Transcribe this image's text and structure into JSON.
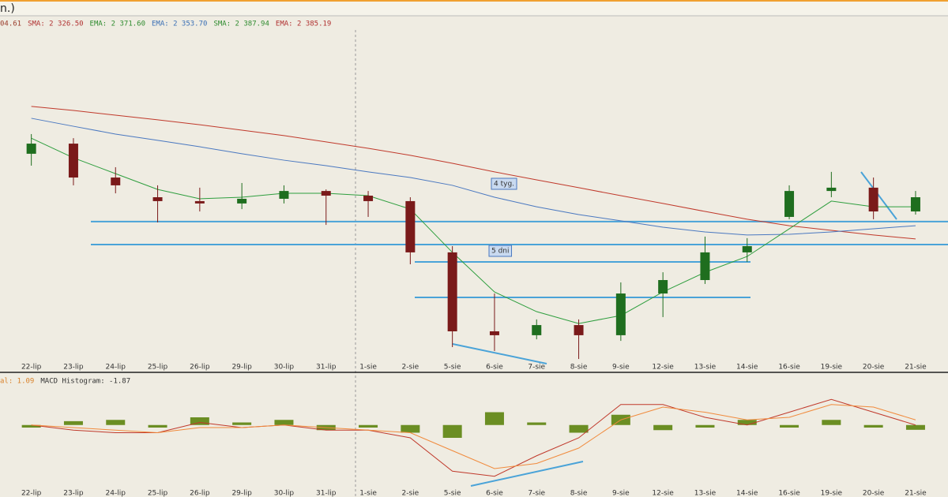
{
  "title": "n.)",
  "chart_data": [
    {
      "type": "candlestick",
      "legend": [
        {
          "label": "04.61",
          "color": "#9a3b2a"
        },
        {
          "label": "SMA: 2 326.50",
          "color": "#b03030"
        },
        {
          "label": "EMA: 2 371.60",
          "color": "#2e8b2e"
        },
        {
          "label": "EMA: 2 353.70",
          "color": "#3a6fb5"
        },
        {
          "label": "SMA: 2 387.94",
          "color": "#2e8b2e"
        },
        {
          "label": "EMA: 2 385.19",
          "color": "#b03030"
        }
      ],
      "categories": [
        "22-lip",
        "23-lip",
        "24-lip",
        "25-lip",
        "26-lip",
        "29-lip",
        "30-lip",
        "31-lip",
        "1-sie",
        "2-sie",
        "5-sie",
        "6-sie",
        "7-sie",
        "8-sie",
        "9-sie",
        "12-sie",
        "13-sie",
        "14-sie",
        "16-sie",
        "19-sie",
        "20-sie",
        "21-sie"
      ],
      "open": [
        2357.3,
        2362.5,
        2345.1,
        2335.0,
        2333.0,
        2331.8,
        2334.2,
        2338.2,
        2335.8,
        2333.0,
        2306.7,
        2266.2,
        2264.2,
        2269.4,
        2264.2,
        2285.6,
        2292.5,
        2306.7,
        2324.9,
        2338.2,
        2339.9,
        2327.7
      ],
      "high": [
        2367.4,
        2365.3,
        2350.4,
        2341.1,
        2339.9,
        2342.3,
        2341.1,
        2339.0,
        2338.2,
        2335.0,
        2309.9,
        2285.6,
        2272.3,
        2272.3,
        2291.3,
        2296.5,
        2314.8,
        2314.0,
        2341.1,
        2348.0,
        2345.1,
        2338.2
      ],
      "low": [
        2351.2,
        2341.1,
        2337.0,
        2322.1,
        2327.7,
        2328.9,
        2331.8,
        2320.8,
        2324.9,
        2300.6,
        2258.1,
        2256.1,
        2262.1,
        2252.0,
        2261.3,
        2273.5,
        2290.5,
        2301.8,
        2323.7,
        2335.0,
        2323.7,
        2326.1
      ],
      "close": [
        2362.5,
        2345.1,
        2341.1,
        2333.0,
        2331.8,
        2334.2,
        2338.2,
        2335.8,
        2333.0,
        2306.7,
        2266.2,
        2264.2,
        2269.4,
        2264.2,
        2285.6,
        2292.5,
        2306.7,
        2309.9,
        2338.2,
        2339.9,
        2327.7,
        2335.0
      ],
      "up_color": "#1f6e1f",
      "down_color": "#7a1a1a",
      "series": [
        {
          "color": "#c0392b",
          "values": [
            2381.6,
            2379.5,
            2377.1,
            2374.7,
            2372.2,
            2369.4,
            2366.6,
            2363.4,
            2360.1,
            2356.5,
            2352.4,
            2348.0,
            2343.9,
            2339.9,
            2335.8,
            2331.8,
            2327.7,
            2323.7,
            2320.4,
            2318.0,
            2315.6,
            2313.6
          ]
        },
        {
          "color": "#4a78c0",
          "values": [
            2375.5,
            2371.4,
            2367.4,
            2364.2,
            2360.9,
            2357.3,
            2354.0,
            2351.2,
            2348.0,
            2345.1,
            2341.1,
            2335.0,
            2330.1,
            2326.1,
            2322.9,
            2319.6,
            2317.2,
            2315.6,
            2316.0,
            2317.2,
            2318.8,
            2320.4
          ]
        },
        {
          "color": "#2e9e3e",
          "values": [
            2365.3,
            2355.2,
            2347.1,
            2339.0,
            2334.2,
            2335.0,
            2337.0,
            2337.0,
            2335.8,
            2328.9,
            2306.7,
            2286.4,
            2276.3,
            2270.2,
            2274.3,
            2286.4,
            2296.5,
            2304.6,
            2318.8,
            2333.0,
            2330.1,
            2330.1
          ]
        }
      ],
      "levels": [
        2322.5,
        2310.7,
        2301.8,
        2283.6
      ],
      "level_color": "#4aa3d8",
      "annotations": [
        "4 tyg.",
        "5 dni"
      ],
      "ylim": [
        2250,
        2420
      ]
    },
    {
      "type": "macd",
      "legend": [
        {
          "label": "al: 1.09",
          "color": "#d9822b"
        },
        {
          "label": "MACD Histogram: -1.87",
          "color": "#333333"
        }
      ],
      "categories": [
        "22-lip",
        "23-lip",
        "24-lip",
        "25-lip",
        "26-lip",
        "29-lip",
        "30-lip",
        "31-lip",
        "1-sie",
        "2-sie",
        "5-sie",
        "6-sie",
        "7-sie",
        "8-sie",
        "9-sie",
        "12-sie",
        "13-sie",
        "14-sie",
        "16-sie",
        "19-sie",
        "20-sie",
        "21-sie"
      ],
      "histogram": [
        -1,
        1.5,
        2,
        -1,
        3,
        1,
        2,
        -2,
        -1,
        -3,
        -5,
        5,
        1,
        -3,
        4,
        -2,
        -1,
        2,
        -1,
        2,
        -1,
        -1.87
      ],
      "histogram_color": "#6b8e23",
      "series": [
        {
          "color": "#c0392b",
          "values": [
            0,
            -2,
            -3,
            -3,
            1,
            -1,
            0,
            -2,
            -2,
            -5,
            -18,
            -20,
            -12,
            -5,
            8,
            8,
            3,
            0,
            5,
            10,
            5,
            0
          ]
        },
        {
          "color": "#f08a3c",
          "values": [
            0,
            -1,
            -2,
            -3,
            -1,
            -1,
            0,
            -1,
            -2,
            -3,
            -10,
            -17,
            -15,
            -9,
            2,
            7,
            5,
            2,
            3,
            8,
            7,
            2
          ]
        }
      ],
      "ylim": [
        -25,
        15
      ]
    }
  ]
}
